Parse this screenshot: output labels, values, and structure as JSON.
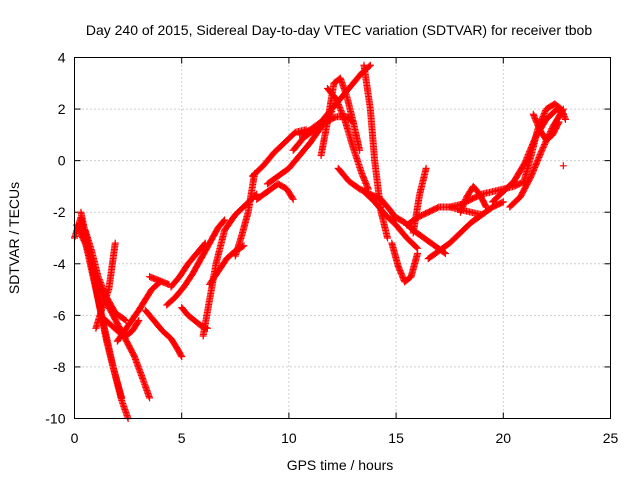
{
  "chart_data": {
    "type": "scatter",
    "title": "Day 240 of 2015, Sidereal Day-to-day VTEC variation (SDTVAR) for receiver tbob",
    "xlabel": "GPS time / hours",
    "ylabel": "SDTVAR / TECUs",
    "xlim": [
      0,
      25
    ],
    "ylim": [
      -10,
      4
    ],
    "xticks": [
      0,
      5,
      10,
      15,
      20,
      25
    ],
    "yticks": [
      -10,
      -8,
      -6,
      -4,
      -2,
      0,
      2,
      4
    ],
    "xtick_labels": [
      "0",
      "5",
      "10",
      "15",
      "20",
      "25"
    ],
    "ytick_labels": [
      "-10",
      "-8",
      "-6",
      "-4",
      "-2",
      "0",
      "2",
      "4"
    ],
    "grid": true,
    "marker": "plus",
    "color": "#ff0000",
    "series": [
      {
        "x": [
          0.0,
          0.3,
          0.6,
          1.0,
          1.4,
          1.8,
          2.2,
          2.5
        ],
        "y": [
          -3.0,
          -2.2,
          -3.5,
          -5.0,
          -6.5,
          -8.0,
          -9.3,
          -10.0
        ]
      },
      {
        "x": [
          0.1,
          0.5,
          0.9,
          1.3,
          1.8,
          2.3,
          2.8,
          3.2,
          3.5
        ],
        "y": [
          -2.5,
          -3.2,
          -4.2,
          -5.2,
          -6.0,
          -6.8,
          -7.6,
          -8.5,
          -9.2
        ]
      },
      {
        "x": [
          0.3,
          0.6,
          0.9,
          1.2,
          1.5,
          1.8,
          2.2
        ],
        "y": [
          -2.0,
          -3.2,
          -4.5,
          -5.8,
          -7.0,
          -8.0,
          -9.2
        ]
      },
      {
        "x": [
          0.5,
          0.8,
          1.1,
          1.5,
          1.9,
          2.4
        ],
        "y": [
          -2.7,
          -3.5,
          -4.5,
          -5.3,
          -5.9,
          -6.2
        ]
      },
      {
        "x": [
          1.0,
          1.3,
          1.6,
          1.9
        ],
        "y": [
          -6.5,
          -5.7,
          -5.0,
          -3.2
        ]
      },
      {
        "x": [
          1.2,
          1.6,
          2.0,
          2.4,
          2.7,
          3.0
        ],
        "y": [
          -6.0,
          -6.3,
          -6.6,
          -6.8,
          -6.6,
          -6.2
        ]
      },
      {
        "x": [
          2.0,
          2.5,
          3.0,
          3.3,
          3.6,
          4.0
        ],
        "y": [
          -7.0,
          -6.4,
          -5.8,
          -5.4,
          -5.0,
          -4.7
        ]
      },
      {
        "x": [
          3.5,
          3.8,
          4.1,
          4.4
        ],
        "y": [
          -4.5,
          -4.6,
          -4.7,
          -4.8
        ]
      },
      {
        "x": [
          3.3,
          3.7,
          4.1,
          4.5,
          4.8,
          5.0
        ],
        "y": [
          -5.8,
          -6.2,
          -6.6,
          -6.9,
          -7.3,
          -7.6
        ]
      },
      {
        "x": [
          4.3,
          4.7,
          5.1,
          5.5,
          5.9,
          6.3,
          6.7,
          7.0
        ],
        "y": [
          -5.6,
          -5.3,
          -4.9,
          -4.4,
          -3.8,
          -3.2,
          -2.6,
          -2.3
        ]
      },
      {
        "x": [
          4.5,
          4.9,
          5.3,
          5.7,
          6.1
        ],
        "y": [
          -4.9,
          -4.5,
          -4.0,
          -3.6,
          -3.2
        ]
      },
      {
        "x": [
          5.0,
          5.3,
          5.6,
          5.9,
          6.2
        ],
        "y": [
          -5.7,
          -6.0,
          -6.2,
          -6.4,
          -6.5
        ]
      },
      {
        "x": [
          6.0,
          6.3,
          6.6,
          7.0,
          7.5,
          8.0,
          8.5
        ],
        "y": [
          -6.8,
          -5.4,
          -4.0,
          -2.7,
          -2.1,
          -1.7,
          -1.3
        ]
      },
      {
        "x": [
          6.3,
          6.7,
          7.1,
          7.5,
          7.9
        ],
        "y": [
          -4.8,
          -4.3,
          -3.8,
          -3.5,
          -3.3
        ]
      },
      {
        "x": [
          7.5,
          7.8,
          8.1,
          8.4
        ],
        "y": [
          -3.7,
          -2.9,
          -2.0,
          -0.5
        ]
      },
      {
        "x": [
          8.3,
          8.8,
          9.3,
          9.8,
          10.3,
          10.8
        ],
        "y": [
          -0.6,
          -0.2,
          0.3,
          0.7,
          1.1,
          1.2
        ]
      },
      {
        "x": [
          8.5,
          9.0,
          9.5,
          9.9,
          10.2
        ],
        "y": [
          -1.5,
          -1.2,
          -0.9,
          -1.1,
          -1.5
        ]
      },
      {
        "x": [
          9.0,
          9.5,
          10.0,
          10.5,
          11.0,
          11.5,
          12.0
        ],
        "y": [
          -0.9,
          -0.6,
          -0.3,
          0.2,
          0.7,
          1.3,
          1.9
        ]
      },
      {
        "x": [
          10.2,
          10.7,
          11.2,
          11.7,
          12.2,
          12.7,
          13.0
        ],
        "y": [
          0.4,
          0.9,
          1.2,
          1.5,
          1.7,
          1.7,
          1.5
        ]
      },
      {
        "x": [
          10.5,
          11.0,
          11.5,
          12.0,
          12.5,
          13.0,
          13.4,
          13.8
        ],
        "y": [
          1.0,
          1.2,
          1.5,
          2.0,
          2.5,
          3.0,
          3.4,
          3.7
        ]
      },
      {
        "x": [
          11.5,
          11.8,
          12.1,
          12.4,
          12.7,
          13.0,
          13.3
        ],
        "y": [
          0.2,
          1.5,
          3.0,
          3.2,
          2.5,
          1.5,
          0.4
        ]
      },
      {
        "x": [
          11.8,
          12.2,
          12.6,
          13.0,
          13.4,
          13.7
        ],
        "y": [
          2.8,
          2.4,
          1.6,
          0.5,
          -0.5,
          -1.1
        ]
      },
      {
        "x": [
          12.3,
          12.8,
          13.3,
          13.8,
          14.3,
          14.8,
          15.0
        ],
        "y": [
          -0.3,
          -0.8,
          -1.1,
          -1.3,
          -1.5,
          -2.0,
          -2.3
        ]
      },
      {
        "x": [
          13.5,
          13.8,
          14.0,
          14.3,
          14.6
        ],
        "y": [
          3.7,
          2.0,
          0.0,
          -2.0,
          -3.0
        ]
      },
      {
        "x": [
          13.5,
          14.0,
          14.5,
          15.0,
          15.5,
          16.0
        ],
        "y": [
          -1.2,
          -1.6,
          -2.1,
          -2.5,
          -3.0,
          -3.4
        ]
      },
      {
        "x": [
          14.8,
          15.1,
          15.4,
          15.7,
          16.0
        ],
        "y": [
          -3.2,
          -4.1,
          -4.7,
          -4.5,
          -3.6
        ]
      },
      {
        "x": [
          15.0,
          15.4,
          15.8,
          16.3,
          16.8,
          17.3
        ],
        "y": [
          -2.2,
          -2.4,
          -2.7,
          -3.0,
          -3.3,
          -3.6
        ]
      },
      {
        "x": [
          15.5,
          16.0,
          16.5,
          17.0,
          17.5,
          18.0,
          18.5,
          19.0
        ],
        "y": [
          -2.5,
          -2.2,
          -2.0,
          -1.8,
          -1.8,
          -1.9,
          -2.0,
          -2.1
        ]
      },
      {
        "x": [
          15.8,
          16.1,
          16.4
        ],
        "y": [
          -2.8,
          -1.3,
          -0.3
        ]
      },
      {
        "x": [
          16.5,
          17.0,
          17.5,
          18.0,
          18.5,
          19.0,
          19.5,
          20.0
        ],
        "y": [
          -3.8,
          -3.5,
          -3.2,
          -2.8,
          -2.4,
          -2.1,
          -1.8,
          -1.6
        ]
      },
      {
        "x": [
          17.5,
          18.0,
          18.5,
          19.0,
          19.5,
          20.0,
          20.5,
          21.0
        ],
        "y": [
          -1.8,
          -1.7,
          -1.5,
          -1.3,
          -1.2,
          -1.1,
          -1.0,
          -0.8
        ]
      },
      {
        "x": [
          18.0,
          18.3,
          18.6,
          18.9,
          19.2
        ],
        "y": [
          -2.0,
          -1.4,
          -1.0,
          -1.3,
          -1.8
        ]
      },
      {
        "x": [
          19.5,
          20.0,
          20.5,
          21.0,
          21.5,
          22.0,
          22.5,
          22.8
        ],
        "y": [
          -1.6,
          -1.2,
          -0.8,
          -0.1,
          0.9,
          1.6,
          2.0,
          1.8
        ]
      },
      {
        "x": [
          20.3,
          20.8,
          21.3,
          21.8,
          22.3,
          22.8
        ],
        "y": [
          -1.8,
          -1.4,
          -0.6,
          0.4,
          1.3,
          2.0
        ]
      },
      {
        "x": [
          21.0,
          21.3,
          21.6,
          22.0,
          22.4,
          22.7,
          22.9
        ],
        "y": [
          -0.7,
          0.2,
          1.2,
          2.0,
          2.2,
          2.0,
          1.6
        ]
      },
      {
        "x": [
          21.4,
          21.7,
          22.0,
          22.3,
          22.6
        ],
        "y": [
          1.8,
          1.2,
          0.8,
          1.0,
          1.5
        ]
      },
      {
        "x": [
          22.8
        ],
        "y": [
          -0.2
        ]
      }
    ]
  }
}
